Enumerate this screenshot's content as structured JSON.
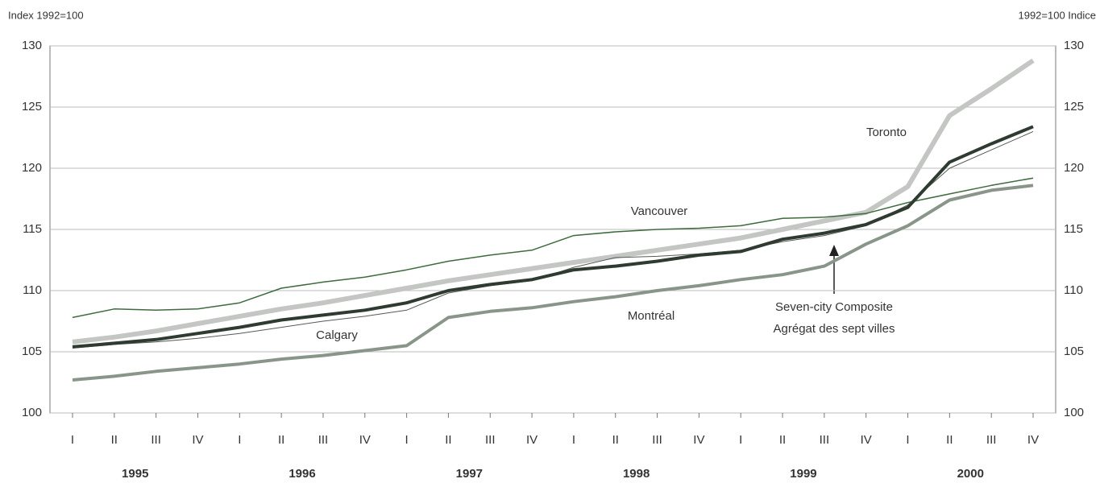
{
  "chart_data": {
    "type": "line",
    "y_label_left": "Index  1992=100",
    "y_label_right": "1992=100  Indice",
    "categories": [
      "I",
      "II",
      "III",
      "IV",
      "I",
      "II",
      "III",
      "IV",
      "I",
      "II",
      "III",
      "IV",
      "I",
      "II",
      "III",
      "IV",
      "I",
      "II",
      "III",
      "IV",
      "I",
      "II",
      "III",
      "IV"
    ],
    "years": [
      "1995",
      "1996",
      "1997",
      "1998",
      "1999",
      "2000"
    ],
    "ylim": [
      100,
      130
    ],
    "yticks": [
      100,
      105,
      110,
      115,
      120,
      125,
      130
    ],
    "grid": true,
    "series": [
      {
        "name": "Toronto",
        "color": "#c4c6c4",
        "values": [
          105.8,
          106.2,
          106.7,
          107.3,
          107.9,
          108.5,
          109.0,
          109.6,
          110.2,
          110.8,
          111.3,
          111.8,
          112.3,
          112.8,
          113.3,
          113.8,
          114.3,
          115.0,
          115.7,
          116.4,
          118.5,
          124.3,
          126.5,
          128.8
        ]
      },
      {
        "name": "Calgary",
        "color": "#555a55",
        "values": [
          105.3,
          105.6,
          105.8,
          106.1,
          106.5,
          107.0,
          107.5,
          107.9,
          108.4,
          109.8,
          110.4,
          110.8,
          111.9,
          112.7,
          112.8,
          113.0,
          113.3,
          114.0,
          114.5,
          115.3,
          117.0,
          120.0,
          121.5,
          123.0
        ]
      },
      {
        "name": "Vancouver",
        "color": "#3d6b3d",
        "values": [
          107.8,
          108.5,
          108.4,
          108.5,
          109.0,
          110.2,
          110.7,
          111.1,
          111.7,
          112.4,
          112.9,
          113.3,
          114.5,
          114.8,
          115.0,
          115.1,
          115.3,
          115.9,
          116.0,
          116.3,
          117.2,
          117.9,
          118.6,
          119.2
        ]
      },
      {
        "name": "Montréal",
        "color": "#8a958a",
        "values": [
          102.7,
          103.0,
          103.4,
          103.7,
          104.0,
          104.4,
          104.7,
          105.1,
          105.5,
          107.8,
          108.3,
          108.6,
          109.1,
          109.5,
          110.0,
          110.4,
          110.9,
          111.3,
          112.0,
          113.8,
          115.3,
          117.4,
          118.2,
          118.6
        ]
      },
      {
        "name": "Seven-city Composite",
        "name_fr": "Agrégat des sept villes",
        "color": "#2f3a30",
        "values": [
          105.4,
          105.7,
          106.0,
          106.5,
          107.0,
          107.6,
          108.0,
          108.4,
          109.0,
          110.0,
          110.5,
          110.9,
          111.7,
          112.0,
          112.4,
          112.9,
          113.2,
          114.2,
          114.7,
          115.4,
          116.8,
          120.5,
          122.0,
          123.4
        ]
      }
    ]
  }
}
